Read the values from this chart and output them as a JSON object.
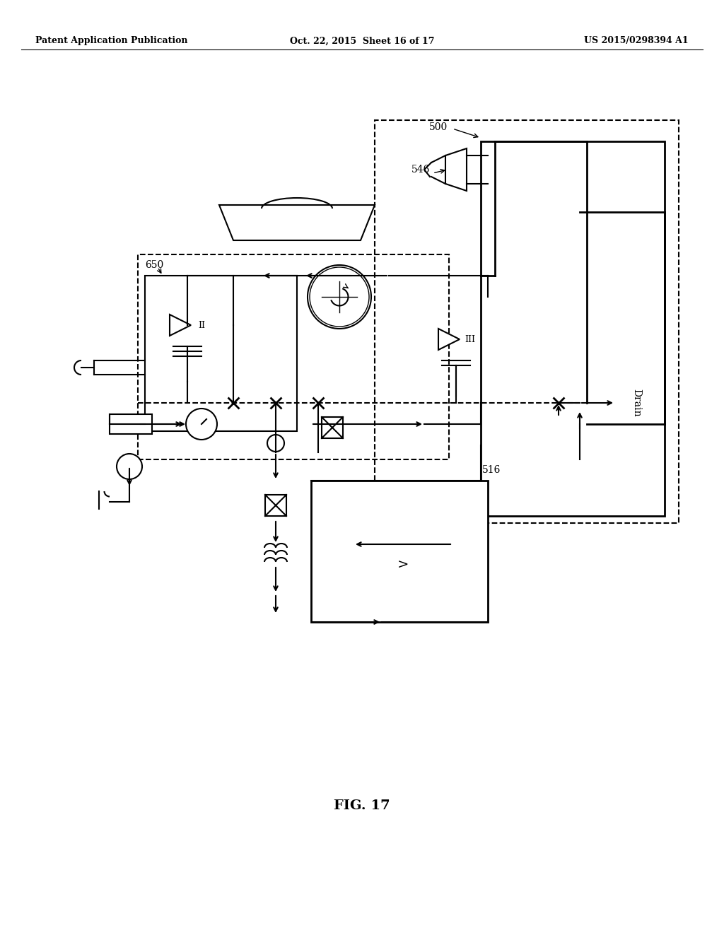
{
  "bg_color": "#ffffff",
  "line_color": "#000000",
  "fig_width": 10.24,
  "fig_height": 13.2,
  "header_left": "Patent Application Publication",
  "header_mid": "Oct. 22, 2015  Sheet 16 of 17",
  "header_right": "US 2015/0298394 A1",
  "figure_label": "FIG. 17",
  "label_500": "500",
  "label_546": "546",
  "label_650": "650",
  "label_516": "516",
  "label_drain": "Drain",
  "label_II": "II",
  "label_III": "III"
}
